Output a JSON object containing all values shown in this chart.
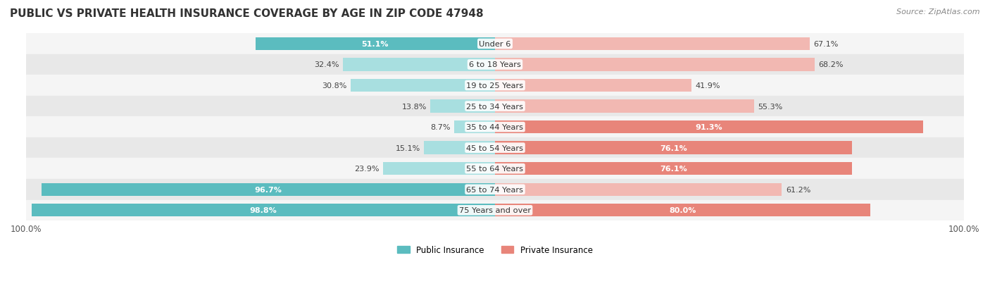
{
  "title": "PUBLIC VS PRIVATE HEALTH INSURANCE COVERAGE BY AGE IN ZIP CODE 47948",
  "source": "Source: ZipAtlas.com",
  "categories": [
    "Under 6",
    "6 to 18 Years",
    "19 to 25 Years",
    "25 to 34 Years",
    "35 to 44 Years",
    "45 to 54 Years",
    "55 to 64 Years",
    "65 to 74 Years",
    "75 Years and over"
  ],
  "public_values": [
    51.1,
    32.4,
    30.8,
    13.8,
    8.7,
    15.1,
    23.9,
    96.7,
    98.8
  ],
  "private_values": [
    67.1,
    68.2,
    41.9,
    55.3,
    91.3,
    76.1,
    76.1,
    61.2,
    80.0
  ],
  "public_color": "#5bbcbf",
  "private_color": "#e8857a",
  "public_color_light": "#a8dfe0",
  "private_color_light": "#f2b8b2",
  "row_bg_color_odd": "#f5f5f5",
  "row_bg_color_even": "#e8e8e8",
  "title_fontsize": 11,
  "max_value": 100.0,
  "legend_public": "Public Insurance",
  "legend_private": "Private Insurance"
}
